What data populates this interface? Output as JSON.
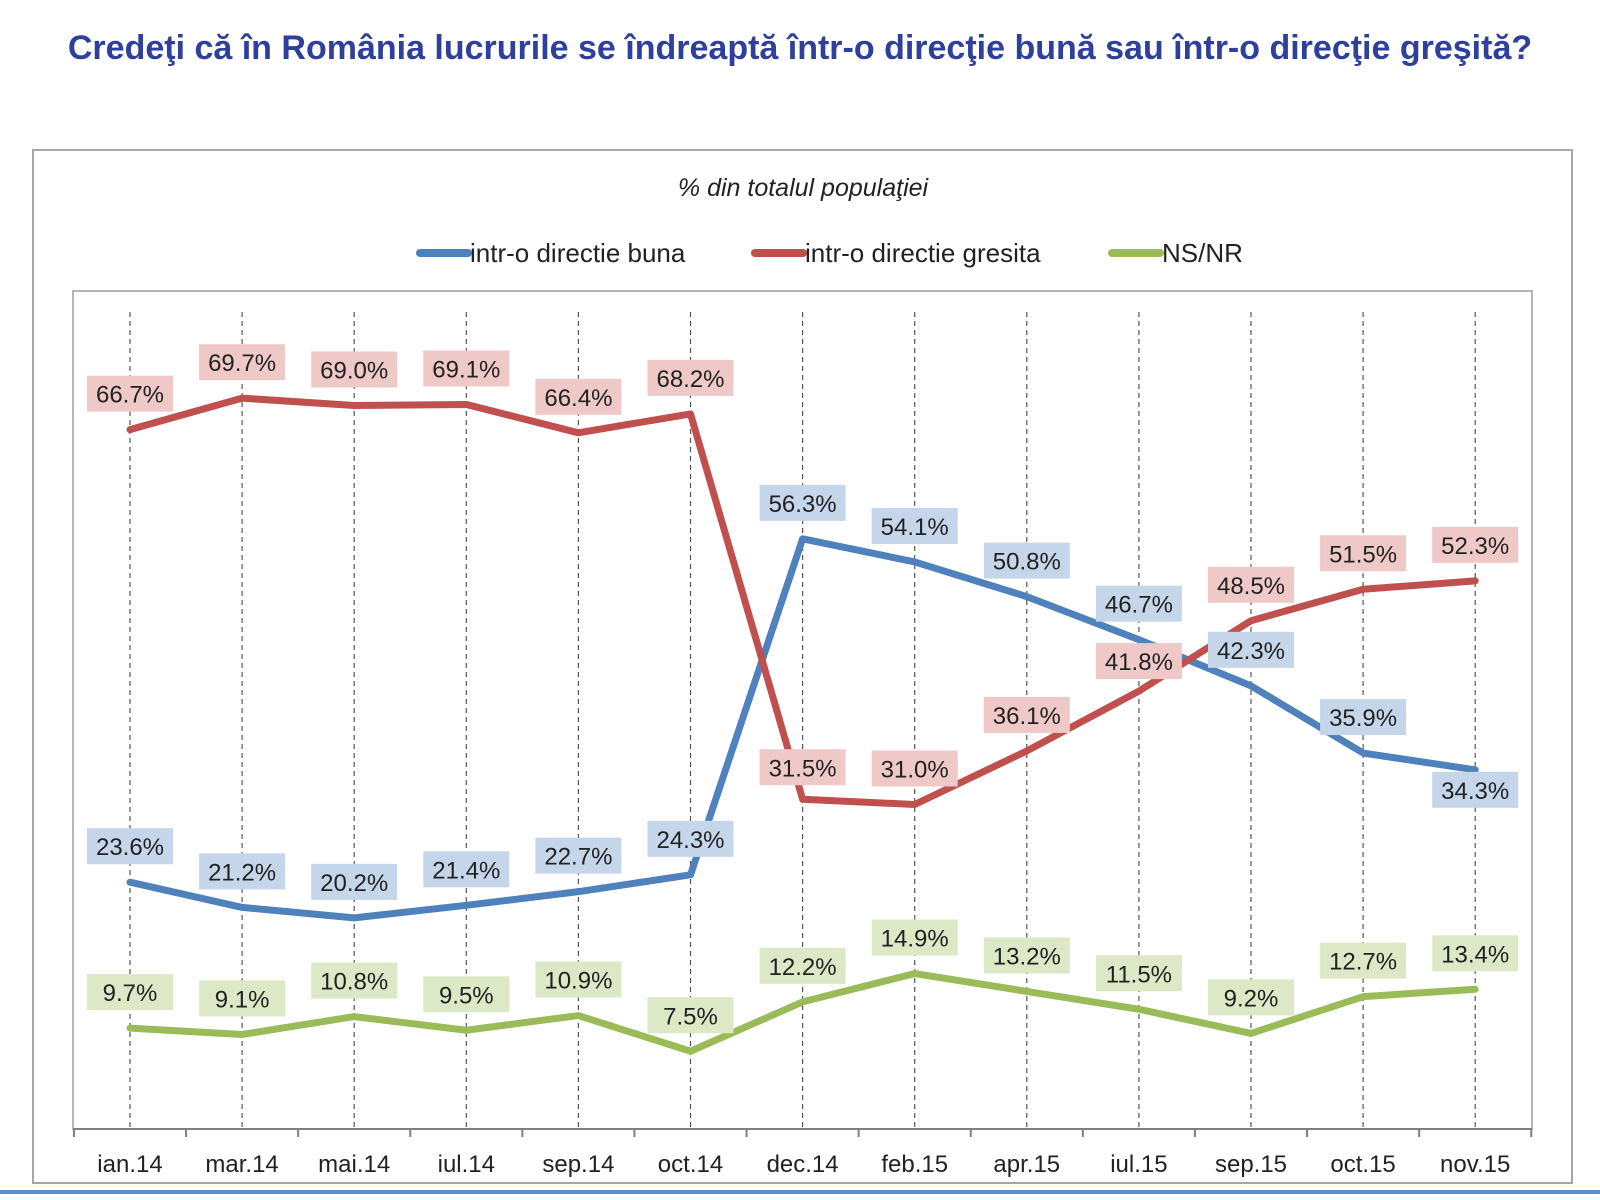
{
  "page": {
    "title": "Credeţi că în România lucrurile se îndreaptă într-o direcţie bună sau într-o direcţie greşită?"
  },
  "colors": {
    "title": "#2f3f9c",
    "bune": "#4f81bd",
    "gresite": "#c0504d",
    "nsnr": "#9bbb59"
  },
  "chart_data": {
    "type": "line",
    "title": "Credeţi că în România lucrurile se îndreaptă într-o direcţie bună sau într-o direcţie greşită?",
    "subtitle": "% din totalul populaţiei",
    "categories": [
      "ian.14",
      "mar.14",
      "mai.14",
      "iul.14",
      "sep.14",
      "oct.14",
      "dec.14",
      "feb.15",
      "apr.15",
      "iul.15",
      "sep.15",
      "oct.15",
      "nov.15"
    ],
    "ylim": [
      0,
      80
    ],
    "grid": "vertical dashed",
    "legend_position": "top",
    "series": [
      {
        "name": "intr-o directie buna",
        "color": "#4f81bd",
        "label_bg": "#c5d6eb",
        "values": [
          23.6,
          21.2,
          20.2,
          21.4,
          22.7,
          24.3,
          56.3,
          54.1,
          50.8,
          46.7,
          42.3,
          35.9,
          34.3
        ],
        "labels": [
          "23.6%",
          "21.2%",
          "20.2%",
          "21.4%",
          "22.7%",
          "24.3%",
          "56.3%",
          "54.1%",
          "50.8%",
          "46.7%",
          "42.3%",
          "35.9%",
          "34.3%"
        ]
      },
      {
        "name": "intr-o directie gresita",
        "color": "#c0504d",
        "label_bg": "#efc9c8",
        "values": [
          66.7,
          69.7,
          69.0,
          69.1,
          66.4,
          68.2,
          31.5,
          31.0,
          36.1,
          41.8,
          48.5,
          51.5,
          52.3
        ],
        "labels": [
          "66.7%",
          "69.7%",
          "69.0%",
          "69.1%",
          "66.4%",
          "68.2%",
          "31.5%",
          "31.0%",
          "36.1%",
          "41.8%",
          "48.5%",
          "51.5%",
          "52.3%"
        ]
      },
      {
        "name": "NS/NR",
        "color": "#9bbb59",
        "label_bg": "#dde8c7",
        "values": [
          9.7,
          9.1,
          10.8,
          9.5,
          10.9,
          7.5,
          12.2,
          14.9,
          13.2,
          11.5,
          9.2,
          12.7,
          13.4
        ],
        "labels": [
          "9.7%",
          "9.1%",
          "10.8%",
          "9.5%",
          "10.9%",
          "7.5%",
          "12.2%",
          "14.9%",
          "13.2%",
          "11.5%",
          "9.2%",
          "12.7%",
          "13.4%"
        ]
      }
    ]
  }
}
